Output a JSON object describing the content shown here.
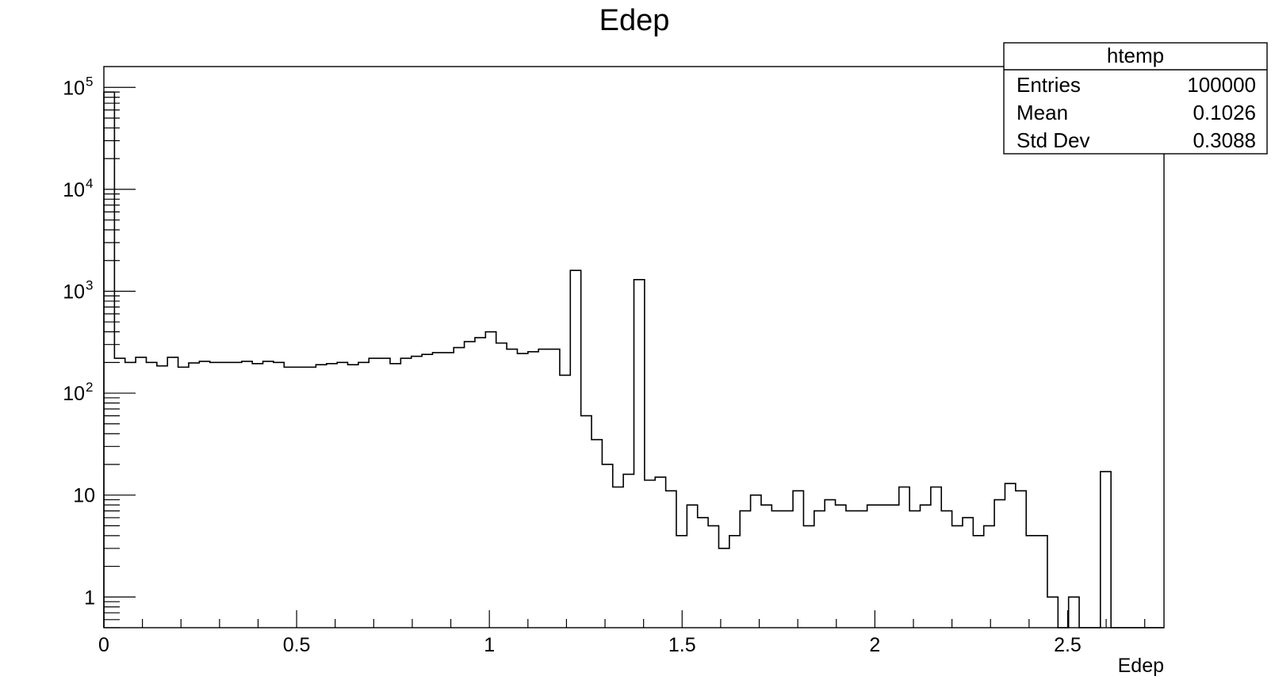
{
  "chart_data": {
    "type": "histogram",
    "title": "Edep",
    "xlabel": "Edep",
    "ylabel": "",
    "log_y": true,
    "xlim": [
      0,
      2.75
    ],
    "ylim": [
      0.5,
      160000
    ],
    "x_ticks": [
      {
        "value": 0,
        "label": "0"
      },
      {
        "value": 0.5,
        "label": "0.5"
      },
      {
        "value": 1,
        "label": "1"
      },
      {
        "value": 1.5,
        "label": "1.5"
      },
      {
        "value": 2,
        "label": "2"
      },
      {
        "value": 2.5,
        "label": "2.5"
      }
    ],
    "y_ticks": [
      {
        "value": 1,
        "base": "1",
        "exp": ""
      },
      {
        "value": 10,
        "base": "10",
        "exp": ""
      },
      {
        "value": 100,
        "base": "10",
        "exp": "2"
      },
      {
        "value": 1000,
        "base": "10",
        "exp": "3"
      },
      {
        "value": 10000,
        "base": "10",
        "exp": "4"
      },
      {
        "value": 100000,
        "base": "10",
        "exp": "5"
      }
    ],
    "bin_edges_start": 0,
    "bin_width": 0.0275,
    "series": [
      {
        "values": [
          90000,
          220,
          200,
          225,
          200,
          185,
          225,
          180,
          198,
          205,
          200,
          200,
          200,
          205,
          195,
          205,
          200,
          180,
          180,
          180,
          190,
          195,
          200,
          190,
          200,
          220,
          220,
          195,
          220,
          230,
          240,
          250,
          250,
          280,
          320,
          350,
          400,
          310,
          270,
          245,
          255,
          270,
          270,
          150,
          1600,
          60,
          35,
          20,
          12,
          16,
          1300,
          14,
          15,
          11,
          4,
          8,
          6,
          5,
          3,
          4,
          7,
          10,
          8,
          7,
          7,
          11,
          5,
          7,
          9,
          8,
          7,
          7,
          8,
          8,
          8,
          12,
          7,
          8,
          12,
          7,
          5,
          6,
          4,
          5,
          9,
          13,
          11,
          4,
          4,
          1,
          0,
          1,
          0,
          0,
          17,
          0,
          0,
          0,
          0,
          0
        ]
      }
    ]
  },
  "stats_box": {
    "title": "htemp",
    "rows": [
      {
        "label": "Entries",
        "value": "100000"
      },
      {
        "label": "Mean",
        "value": "0.1026"
      },
      {
        "label": "Std Dev",
        "value": "0.3088"
      }
    ]
  }
}
